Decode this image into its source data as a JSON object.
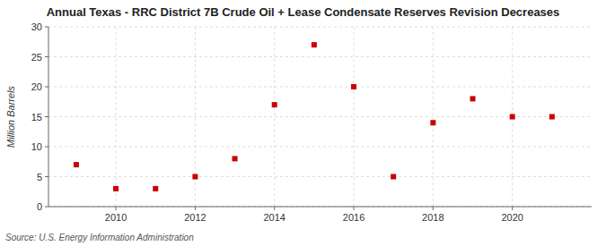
{
  "chart_data": {
    "type": "scatter",
    "title": "Annual Texas - RRC District 7B Crude Oil + Lease Condensate Reserves Revision Decreases",
    "y_label": "Million Barrels",
    "annotations": [
      "Source: U.S. Energy Information Administration"
    ],
    "x": [
      2009,
      2010,
      2011,
      2012,
      2013,
      2014,
      2015,
      2016,
      2017,
      2018,
      2019,
      2020,
      2021
    ],
    "values": [
      7,
      3,
      3,
      5,
      8,
      17,
      27,
      20,
      5,
      14,
      18,
      15,
      15
    ],
    "color": "#cc0000",
    "marker": "square",
    "xlim": [
      2008.3,
      2022
    ],
    "ylim": [
      0,
      30
    ],
    "xticks": [
      2010,
      2012,
      2014,
      2016,
      2018,
      2020
    ],
    "yticks": [
      0,
      5,
      10,
      15,
      20,
      25,
      30
    ],
    "grid": true
  }
}
